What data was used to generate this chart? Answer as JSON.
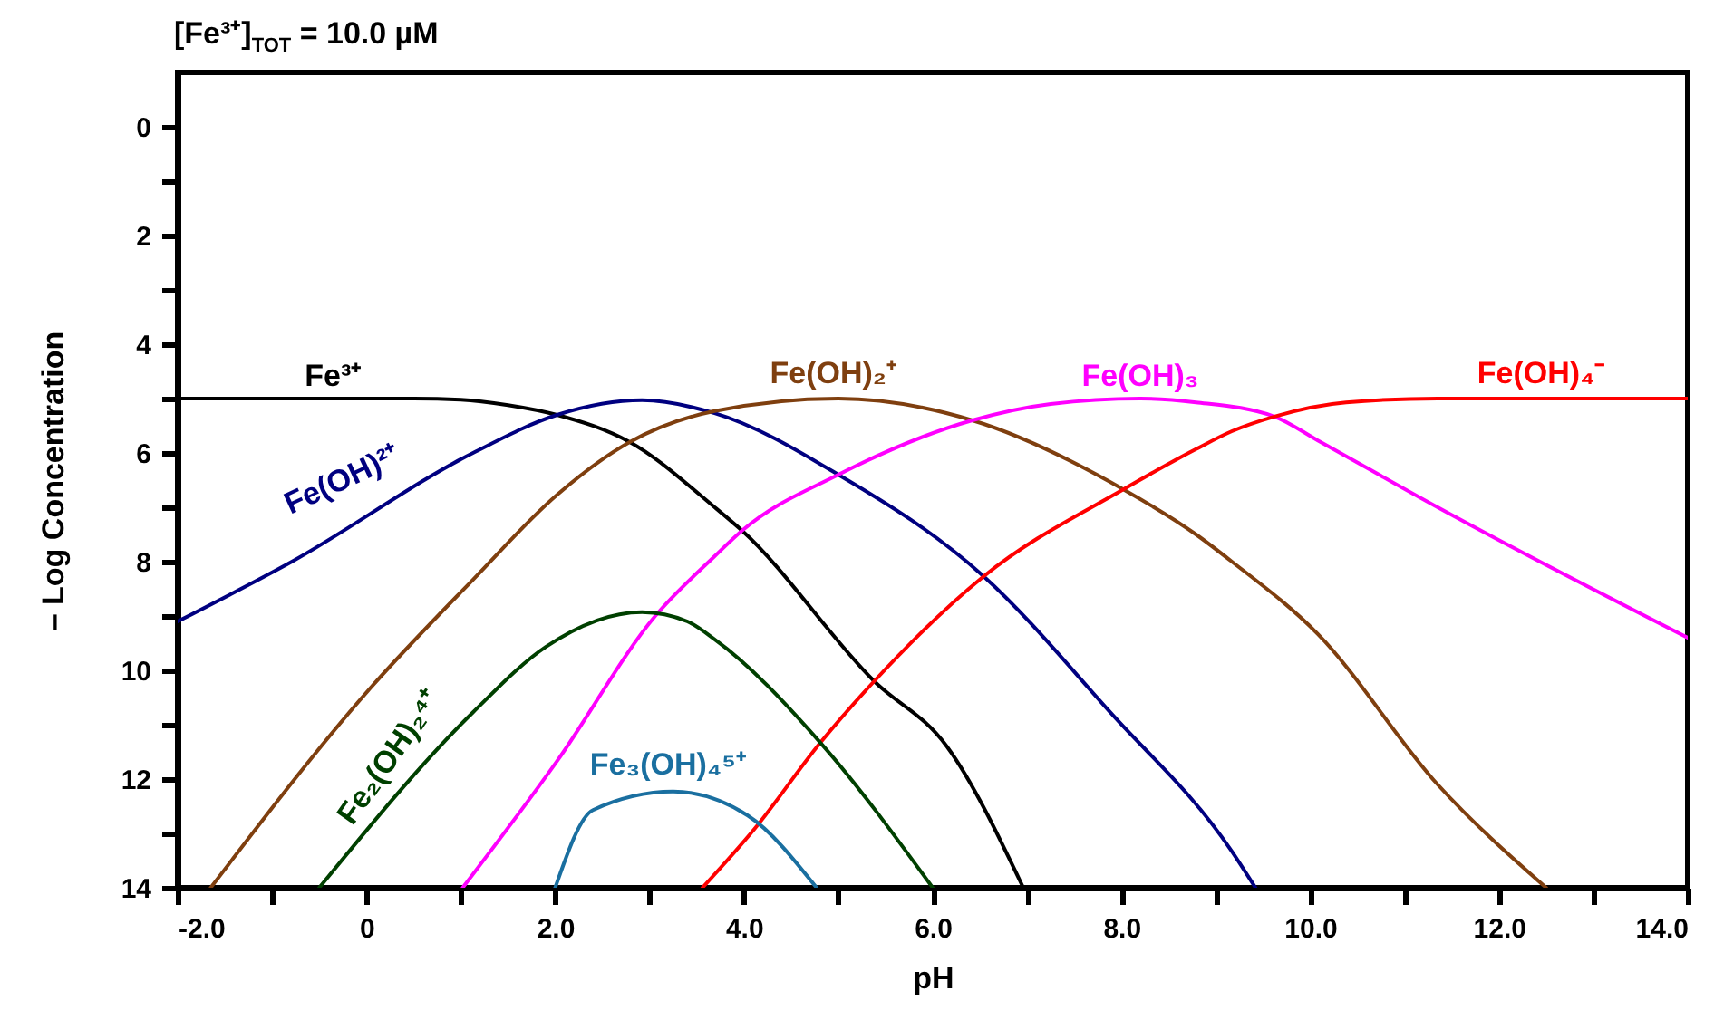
{
  "chart_data": {
    "type": "line",
    "title": "[Fe³⁺]$_{TOT}$ = 10.0 µM",
    "xlabel": "pH",
    "ylabel": "– Log Concentration",
    "xlim": [
      -2,
      14
    ],
    "ylim": [
      14,
      -1
    ],
    "xticks": [
      {
        "value": -2,
        "label": "-2.0"
      },
      {
        "value": -1,
        "label": null
      },
      0,
      {
        "value": 1,
        "label": null
      },
      {
        "value": 2,
        "label": "2.0"
      },
      {
        "value": 3,
        "label": null
      },
      {
        "value": 4,
        "label": "4.0"
      },
      {
        "value": 5,
        "label": null
      },
      {
        "value": 6,
        "label": "6.0"
      },
      {
        "value": 7,
        "label": null
      },
      {
        "value": 8,
        "label": "8.0"
      },
      {
        "value": 9,
        "label": null
      },
      {
        "value": 10,
        "label": "10.0"
      },
      {
        "value": 11,
        "label": null
      },
      {
        "value": 12,
        "label": "12.0"
      },
      {
        "value": 13,
        "label": null
      },
      {
        "value": 14,
        "label": "14.0"
      }
    ],
    "yticks": [
      0,
      {
        "value": 1,
        "label": null
      },
      2,
      {
        "value": 3,
        "label": null
      },
      4,
      {
        "value": 5,
        "label": null
      },
      6,
      {
        "value": 7,
        "label": null
      },
      8,
      {
        "value": 9,
        "label": null
      },
      10,
      {
        "value": 11,
        "label": null
      },
      12,
      {
        "value": 13,
        "label": null
      },
      14
    ],
    "grid": false,
    "marker": "none",
    "line_style": "solid",
    "series": [
      {
        "name": "Fe³⁺",
        "color": "#000000",
        "x": [
          -2,
          0,
          0.5,
          1.0,
          1.5,
          2.02,
          2.79,
          3.69,
          3.98,
          5.38,
          6.15,
          6.96
        ],
        "values": [
          5,
          5,
          5,
          5.02,
          5.12,
          5.3,
          5.8,
          7.0,
          7.43,
          10.2,
          11.4,
          14
        ]
      },
      {
        "name": "Fe(OH)²⁺",
        "color": "#000080",
        "x": [
          -2,
          -0.79,
          1.13,
          2.02,
          2.92,
          3.69,
          5.0,
          6.54,
          7.88,
          9.17,
          9.42
        ],
        "values": [
          9.1,
          8.0,
          6.0,
          5.3,
          5.03,
          5.27,
          6.4,
          8.27,
          10.77,
          13.33,
          14
        ]
      },
      {
        "name": "Fe(OH)₂⁺",
        "color": "#7f3f0f",
        "x": [
          -1.65,
          0.04,
          1.13,
          2.02,
          2.79,
          3.69,
          5.0,
          6.42,
          8.02,
          8.79,
          9.17,
          10.08,
          11.35,
          12.5
        ],
        "values": [
          14,
          10.33,
          8.33,
          6.77,
          5.8,
          5.23,
          5.0,
          5.4,
          6.67,
          7.5,
          8.0,
          9.33,
          12.1,
          14
        ]
      },
      {
        "name": "Fe(OH)₃",
        "color": "#ff00ff",
        "x": [
          1.02,
          2.02,
          3.06,
          3.69,
          3.98,
          5.0,
          6.42,
          7.25,
          8.2,
          8.79,
          9.62,
          10.08,
          11.35,
          14
        ],
        "values": [
          14,
          11.67,
          9.0,
          7.9,
          7.43,
          6.4,
          5.4,
          5.1,
          5.0,
          5.07,
          5.33,
          5.77,
          7.0,
          9.4
        ]
      },
      {
        "name": "Fe(OH)₄⁻",
        "color": "#ff0000",
        "x": [
          3.56,
          4.12,
          4.81,
          5.38,
          6.54,
          8.02,
          8.79,
          9.17,
          9.62,
          10.38,
          11.35,
          14
        ],
        "values": [
          14,
          12.9,
          11.33,
          10.2,
          8.27,
          6.67,
          5.93,
          5.6,
          5.33,
          5.07,
          5.0,
          5.0
        ]
      },
      {
        "name": "Fe₂(OH)₂⁴⁺",
        "color": "#004000",
        "x": [
          -0.5,
          1.13,
          1.9,
          2.92,
          3.4,
          3.69,
          4.81,
          6.0
        ],
        "values": [
          14,
          10.77,
          9.57,
          8.93,
          9.1,
          9.43,
          11.33,
          14
        ]
      },
      {
        "name": "Fe₃(OH)₄⁵⁺",
        "color": "#1a6fa0",
        "x": [
          2.0,
          2.4,
          3.25,
          4.04,
          4.77
        ],
        "values": [
          14,
          12.57,
          12.23,
          12.67,
          14
        ]
      }
    ]
  }
}
